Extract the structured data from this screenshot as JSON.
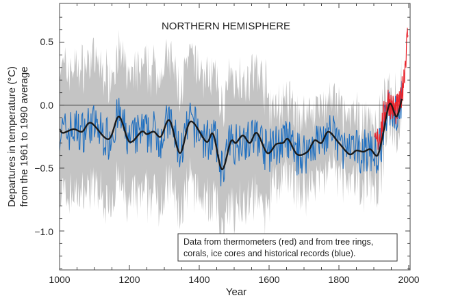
{
  "chart_data": {
    "type": "line",
    "title": "NORTHERN HEMISPHERE",
    "xlabel": "Year",
    "ylabel_line1": "Departures in temperature (°C)",
    "ylabel_line2": "from the 1961 to 1990 average",
    "xlim": [
      1000,
      2000
    ],
    "ylim": [
      -1.31,
      0.79
    ],
    "x_ticks": [
      1000,
      1200,
      1400,
      1600,
      1800,
      2000
    ],
    "x_tick_labels": [
      "1000",
      "1200",
      "1400",
      "1600",
      "1800",
      "2000"
    ],
    "y_ticks": [
      0.5,
      0.0,
      -0.5,
      -1.0
    ],
    "y_tick_labels": [
      "0.5",
      "0.0",
      "−0.5",
      "−1.0"
    ],
    "annotation_line1": "Data from thermometers (red) and from tree rings,",
    "annotation_line2": "corals, ice cores and historical records (blue).",
    "colors": {
      "proxy": "#1f6fc0",
      "thermometer": "#e8242c",
      "band": "#c4c4c4",
      "smooth": "#1a1a1a"
    },
    "series": [
      {
        "name": "smoothed (50-year)",
        "x": [
          1000,
          1010,
          1040,
          1065,
          1090,
          1140,
          1170,
          1200,
          1235,
          1250,
          1270,
          1290,
          1315,
          1345,
          1375,
          1420,
          1440,
          1465,
          1490,
          1505,
          1525,
          1545,
          1565,
          1595,
          1620,
          1640,
          1655,
          1680,
          1710,
          1730,
          1750,
          1770,
          1800,
          1830,
          1850,
          1870,
          1890,
          1910,
          1925,
          1945,
          1965,
          1980
        ],
        "y": [
          -0.19,
          -0.22,
          -0.19,
          -0.21,
          -0.14,
          -0.27,
          -0.09,
          -0.29,
          -0.21,
          -0.23,
          -0.21,
          -0.25,
          -0.12,
          -0.38,
          -0.13,
          -0.29,
          -0.23,
          -0.51,
          -0.29,
          -0.3,
          -0.24,
          -0.3,
          -0.22,
          -0.38,
          -0.31,
          -0.3,
          -0.27,
          -0.39,
          -0.37,
          -0.28,
          -0.3,
          -0.21,
          -0.3,
          -0.39,
          -0.36,
          -0.37,
          -0.35,
          -0.4,
          -0.25,
          0.01,
          -0.09,
          0.05
        ]
      },
      {
        "name": "uncertainty half-width",
        "x": [
          1000,
          1590,
          1610,
          1900,
          1950,
          1980
        ],
        "y": [
          0.5,
          0.5,
          0.3,
          0.25,
          0.15,
          0.15
        ]
      },
      {
        "name": "thermometers (red)",
        "x": [
          1902,
          1920,
          1940,
          1950,
          1960,
          1975,
          1985,
          1990,
          1998
        ],
        "y": [
          -0.35,
          -0.2,
          0.05,
          0.0,
          -0.05,
          0.0,
          0.2,
          0.35,
          0.6
        ]
      }
    ]
  }
}
